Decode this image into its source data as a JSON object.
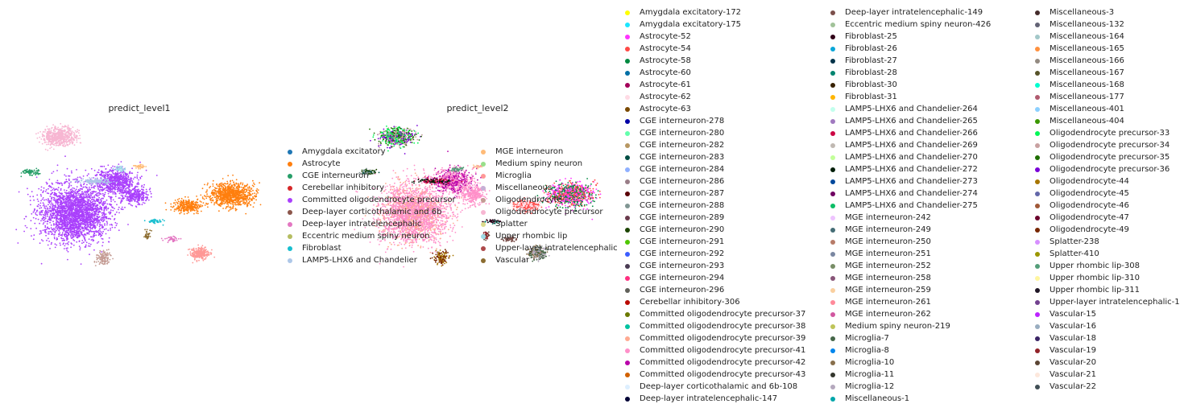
{
  "chart_data": [
    {
      "type": "scatter",
      "title": "predict_level1",
      "legend_placement": "right",
      "grid": false,
      "legend": [
        {
          "name": "Amygdala excitatory",
          "color": "#1f77b4"
        },
        {
          "name": "Astrocyte",
          "color": "#ff7f0e"
        },
        {
          "name": "CGE interneuron",
          "color": "#279e68"
        },
        {
          "name": "Cerebellar inhibitory",
          "color": "#d62728"
        },
        {
          "name": "Committed oligodendrocyte precursor",
          "color": "#aa40fc"
        },
        {
          "name": "Deep-layer corticothalamic and 6b",
          "color": "#8c564b"
        },
        {
          "name": "Deep-layer intratelencephalic",
          "color": "#e377c2"
        },
        {
          "name": "Eccentric medium spiny neuron",
          "color": "#b5bd61"
        },
        {
          "name": "Fibroblast",
          "color": "#17becf"
        },
        {
          "name": "LAMP5-LHX6 and Chandelier",
          "color": "#aec7e8"
        },
        {
          "name": "MGE interneuron",
          "color": "#ffbb78"
        },
        {
          "name": "Medium spiny neuron",
          "color": "#98df8a"
        },
        {
          "name": "Microglia",
          "color": "#ff9896"
        },
        {
          "name": "Miscellaneous",
          "color": "#c5b0d5"
        },
        {
          "name": "Oligodendrocyte",
          "color": "#c49c94"
        },
        {
          "name": "Oligodendrocyte precursor",
          "color": "#f7b6d2"
        },
        {
          "name": "Splatter",
          "color": "#dbdb8d"
        },
        {
          "name": "Upper rhombic lip",
          "color": "#9edae5"
        },
        {
          "name": "Upper-layer intratelencephalic",
          "color": "#ad494a"
        },
        {
          "name": "Vascular",
          "color": "#8c6d31"
        }
      ]
    },
    {
      "type": "scatter",
      "title": "predict_level2",
      "legend_placement": "right",
      "grid": false,
      "legend": [
        {
          "name": "Amygdala excitatory-172",
          "color": "#ffff00"
        },
        {
          "name": "Amygdala excitatory-175",
          "color": "#1ce6ff"
        },
        {
          "name": "Astrocyte-52",
          "color": "#ff34ff"
        },
        {
          "name": "Astrocyte-54",
          "color": "#ff4a46"
        },
        {
          "name": "Astrocyte-58",
          "color": "#008941"
        },
        {
          "name": "Astrocyte-60",
          "color": "#006fa6"
        },
        {
          "name": "Astrocyte-61",
          "color": "#a30059"
        },
        {
          "name": "Astrocyte-62",
          "color": "#ffdbe5"
        },
        {
          "name": "Astrocyte-63",
          "color": "#7a4900"
        },
        {
          "name": "CGE interneuron-278",
          "color": "#0000a6"
        },
        {
          "name": "CGE interneuron-280",
          "color": "#63ffac"
        },
        {
          "name": "CGE interneuron-282",
          "color": "#b79762"
        },
        {
          "name": "CGE interneuron-283",
          "color": "#004d43"
        },
        {
          "name": "CGE interneuron-284",
          "color": "#8fb0ff"
        },
        {
          "name": "CGE interneuron-286",
          "color": "#997d87"
        },
        {
          "name": "CGE interneuron-287",
          "color": "#5a0007"
        },
        {
          "name": "CGE interneuron-288",
          "color": "#809693"
        },
        {
          "name": "CGE interneuron-289",
          "color": "#6a3a4c"
        },
        {
          "name": "CGE interneuron-290",
          "color": "#1b4400"
        },
        {
          "name": "CGE interneuron-291",
          "color": "#4fc601"
        },
        {
          "name": "CGE interneuron-292",
          "color": "#3b5dff"
        },
        {
          "name": "CGE interneuron-293",
          "color": "#4a3b53"
        },
        {
          "name": "CGE interneuron-294",
          "color": "#ff2f80"
        },
        {
          "name": "CGE interneuron-296",
          "color": "#61615a"
        },
        {
          "name": "Cerebellar inhibitory-306",
          "color": "#ba0900"
        },
        {
          "name": "Committed oligodendrocyte precursor-37",
          "color": "#6b7900"
        },
        {
          "name": "Committed oligodendrocyte precursor-38",
          "color": "#00c2a0"
        },
        {
          "name": "Committed oligodendrocyte precursor-39",
          "color": "#ffaa92"
        },
        {
          "name": "Committed oligodendrocyte precursor-41",
          "color": "#ff90c9"
        },
        {
          "name": "Committed oligodendrocyte precursor-42",
          "color": "#b903aa"
        },
        {
          "name": "Committed oligodendrocyte precursor-43",
          "color": "#d16100"
        },
        {
          "name": "Deep-layer corticothalamic and 6b-108",
          "color": "#ddefff"
        },
        {
          "name": "Deep-layer intratelencephalic-147",
          "color": "#000035"
        },
        {
          "name": "Deep-layer intratelencephalic-149",
          "color": "#7b4f4b"
        },
        {
          "name": "Eccentric medium spiny neuron-426",
          "color": "#a1c299"
        },
        {
          "name": "Fibroblast-25",
          "color": "#300018"
        },
        {
          "name": "Fibroblast-26",
          "color": "#0aa6d8"
        },
        {
          "name": "Fibroblast-27",
          "color": "#013349"
        },
        {
          "name": "Fibroblast-28",
          "color": "#00846f"
        },
        {
          "name": "Fibroblast-30",
          "color": "#372101"
        },
        {
          "name": "Fibroblast-31",
          "color": "#ffb500"
        },
        {
          "name": "LAMP5-LHX6 and Chandelier-264",
          "color": "#c2ffed"
        },
        {
          "name": "LAMP5-LHX6 and Chandelier-265",
          "color": "#a079bf"
        },
        {
          "name": "LAMP5-LHX6 and Chandelier-266",
          "color": "#cc0744"
        },
        {
          "name": "LAMP5-LHX6 and Chandelier-269",
          "color": "#c0b9b2"
        },
        {
          "name": "LAMP5-LHX6 and Chandelier-270",
          "color": "#c2ff99"
        },
        {
          "name": "LAMP5-LHX6 and Chandelier-272",
          "color": "#001e09"
        },
        {
          "name": "LAMP5-LHX6 and Chandelier-273",
          "color": "#00489c"
        },
        {
          "name": "LAMP5-LHX6 and Chandelier-274",
          "color": "#6f0062"
        },
        {
          "name": "LAMP5-LHX6 and Chandelier-275",
          "color": "#0cbd66"
        },
        {
          "name": "MGE interneuron-242",
          "color": "#eec3ff"
        },
        {
          "name": "MGE interneuron-249",
          "color": "#456d75"
        },
        {
          "name": "MGE interneuron-250",
          "color": "#b77b68"
        },
        {
          "name": "MGE interneuron-251",
          "color": "#7a87a1"
        },
        {
          "name": "MGE interneuron-252",
          "color": "#788d66"
        },
        {
          "name": "MGE interneuron-258",
          "color": "#885578"
        },
        {
          "name": "MGE interneuron-259",
          "color": "#fad09f"
        },
        {
          "name": "MGE interneuron-261",
          "color": "#ff8a9a"
        },
        {
          "name": "MGE interneuron-262",
          "color": "#d157a0"
        },
        {
          "name": "Medium spiny neuron-219",
          "color": "#bec459"
        },
        {
          "name": "Microglia-7",
          "color": "#456648"
        },
        {
          "name": "Microglia-8",
          "color": "#0086ed"
        },
        {
          "name": "Microglia-10",
          "color": "#886f4c"
        },
        {
          "name": "Microglia-11",
          "color": "#34362d"
        },
        {
          "name": "Microglia-12",
          "color": "#b4a8bd"
        },
        {
          "name": "Miscellaneous-1",
          "color": "#00a6aa"
        },
        {
          "name": "Miscellaneous-3",
          "color": "#452c2c"
        },
        {
          "name": "Miscellaneous-132",
          "color": "#636375"
        },
        {
          "name": "Miscellaneous-164",
          "color": "#a3c8c9"
        },
        {
          "name": "Miscellaneous-165",
          "color": "#ff913f"
        },
        {
          "name": "Miscellaneous-166",
          "color": "#938a81"
        },
        {
          "name": "Miscellaneous-167",
          "color": "#575329"
        },
        {
          "name": "Miscellaneous-168",
          "color": "#00fecf"
        },
        {
          "name": "Miscellaneous-177",
          "color": "#b05b6f"
        },
        {
          "name": "Miscellaneous-401",
          "color": "#8cd0ff"
        },
        {
          "name": "Miscellaneous-404",
          "color": "#3b9700"
        },
        {
          "name": "Oligodendrocyte precursor-33",
          "color": "#04f757"
        },
        {
          "name": "Oligodendrocyte precursor-34",
          "color": "#c8a1a1"
        },
        {
          "name": "Oligodendrocyte precursor-35",
          "color": "#1e6e00"
        },
        {
          "name": "Oligodendrocyte precursor-36",
          "color": "#7900d7"
        },
        {
          "name": "Oligodendrocyte-44",
          "color": "#a77500"
        },
        {
          "name": "Oligodendrocyte-45",
          "color": "#6367a9"
        },
        {
          "name": "Oligodendrocyte-46",
          "color": "#a05837"
        },
        {
          "name": "Oligodendrocyte-47",
          "color": "#6b002c"
        },
        {
          "name": "Oligodendrocyte-49",
          "color": "#772600"
        },
        {
          "name": "Splatter-238",
          "color": "#d790ff"
        },
        {
          "name": "Splatter-410",
          "color": "#9b9700"
        },
        {
          "name": "Upper rhombic lip-308",
          "color": "#549e79"
        },
        {
          "name": "Upper rhombic lip-310",
          "color": "#fff69f"
        },
        {
          "name": "Upper rhombic lip-311",
          "color": "#201625"
        },
        {
          "name": "Upper-layer intratelencephalic-130",
          "color": "#72418f"
        },
        {
          "name": "Vascular-15",
          "color": "#bc23ff"
        },
        {
          "name": "Vascular-16",
          "color": "#99adc0"
        },
        {
          "name": "Vascular-18",
          "color": "#3a2465"
        },
        {
          "name": "Vascular-19",
          "color": "#922329"
        },
        {
          "name": "Vascular-20",
          "color": "#5b4534"
        },
        {
          "name": "Vascular-21",
          "color": "#fde8dc"
        },
        {
          "name": "Vascular-22",
          "color": "#404e55"
        }
      ]
    }
  ]
}
